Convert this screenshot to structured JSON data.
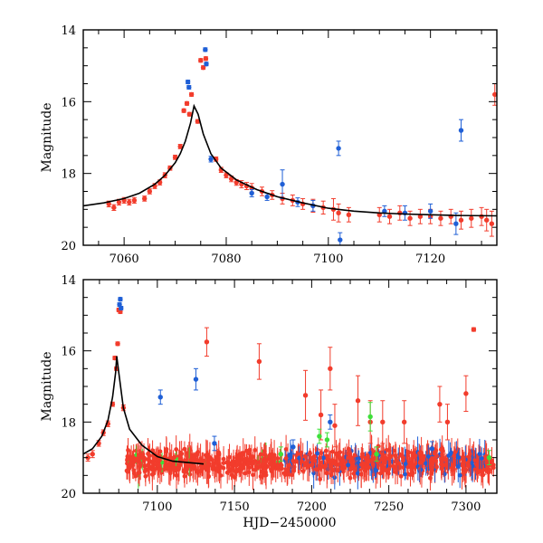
{
  "chart_data": [
    {
      "type": "scatter",
      "title": "",
      "xlabel": "",
      "ylabel": "Magnitude",
      "xlim": [
        7052,
        7133
      ],
      "ylim": [
        20,
        14
      ],
      "y_inverted": true,
      "xticks": [
        7060,
        7080,
        7100,
        7120
      ],
      "yticks": [
        14,
        16,
        18,
        20
      ],
      "colors": {
        "red": "#f23c2c",
        "blue": "#1f5fd6",
        "green": "#3ee03a",
        "model": "#000000"
      },
      "model_curve": {
        "name": "model",
        "x": [
          7052,
          7056,
          7060,
          7063,
          7066,
          7068,
          7070,
          7071,
          7072,
          7073,
          7073.7,
          7074.5,
          7075.5,
          7077,
          7079,
          7082,
          7086,
          7090,
          7095,
          7100,
          7105,
          7110,
          7115,
          7120,
          7125,
          7133
        ],
        "y": [
          18.9,
          18.82,
          18.7,
          18.55,
          18.3,
          18.05,
          17.7,
          17.45,
          17.1,
          16.6,
          16.12,
          16.35,
          16.9,
          17.45,
          17.85,
          18.18,
          18.45,
          18.65,
          18.82,
          18.97,
          19.05,
          19.1,
          19.13,
          19.15,
          19.17,
          19.18
        ]
      },
      "series": [
        {
          "name": "red",
          "x": [
            7057,
            7058,
            7059,
            7060,
            7061,
            7062,
            7064,
            7065,
            7066,
            7067,
            7068,
            7069,
            7070,
            7071,
            7071.7,
            7072.3,
            7072.8,
            7073.2,
            7074.4,
            7075,
            7075.5,
            7076,
            7078,
            7079,
            7080,
            7081,
            7082,
            7083,
            7084,
            7085,
            7087,
            7089,
            7091,
            7093,
            7095,
            7097,
            7099,
            7101,
            7102,
            7104,
            7110,
            7112,
            7114,
            7116,
            7118,
            7120,
            7122,
            7124,
            7126,
            7128,
            7130,
            7131,
            7132,
            7132.6
          ],
          "y": [
            18.85,
            18.95,
            18.8,
            18.75,
            18.8,
            18.75,
            18.7,
            18.5,
            18.35,
            18.25,
            18.05,
            17.85,
            17.55,
            17.25,
            16.25,
            16.05,
            16.35,
            15.8,
            16.55,
            14.85,
            15.05,
            14.8,
            17.6,
            17.9,
            18.05,
            18.15,
            18.25,
            18.3,
            18.35,
            18.4,
            18.5,
            18.6,
            18.7,
            18.75,
            18.85,
            18.9,
            18.95,
            19.0,
            19.1,
            19.15,
            19.15,
            19.2,
            19.1,
            19.25,
            19.2,
            19.2,
            19.25,
            19.2,
            19.3,
            19.25,
            19.2,
            19.3,
            19.4,
            15.8
          ],
          "err": [
            0.08,
            0.08,
            0.08,
            0.08,
            0.08,
            0.08,
            0.07,
            0.07,
            0.07,
            0.07,
            0.07,
            0.06,
            0.06,
            0.06,
            0.05,
            0.05,
            0.05,
            0.05,
            0.05,
            0.05,
            0.05,
            0.05,
            0.06,
            0.07,
            0.07,
            0.08,
            0.08,
            0.1,
            0.1,
            0.12,
            0.12,
            0.12,
            0.15,
            0.15,
            0.15,
            0.18,
            0.18,
            0.3,
            0.25,
            0.2,
            0.2,
            0.2,
            0.2,
            0.2,
            0.2,
            0.2,
            0.2,
            0.2,
            0.25,
            0.25,
            0.25,
            0.3,
            0.35,
            0.3
          ]
        },
        {
          "name": "blue",
          "x": [
            7072.5,
            7072.7,
            7075.9,
            7076.1,
            7077,
            7085,
            7088,
            7091,
            7094,
            7097,
            7102,
            7102.3,
            7111,
            7115,
            7120,
            7125,
            7126
          ],
          "y": [
            15.45,
            15.6,
            14.55,
            14.95,
            17.6,
            18.55,
            18.65,
            18.3,
            18.8,
            18.9,
            17.3,
            19.85,
            19.05,
            19.1,
            19.05,
            19.4,
            16.8
          ],
          "err": [
            0.05,
            0.05,
            0.05,
            0.05,
            0.08,
            0.1,
            0.1,
            0.4,
            0.12,
            0.15,
            0.2,
            0.2,
            0.15,
            0.2,
            0.2,
            0.3,
            0.3
          ]
        }
      ]
    },
    {
      "type": "scatter",
      "title": "",
      "xlabel": "HJD−2450000",
      "ylabel": "Magnitude",
      "xlim": [
        7052,
        7320
      ],
      "ylim": [
        20,
        14
      ],
      "y_inverted": true,
      "xticks": [
        7100,
        7150,
        7200,
        7250,
        7300
      ],
      "yticks": [
        14,
        16,
        18,
        20
      ],
      "colors": {
        "red": "#f23c2c",
        "blue": "#1f5fd6",
        "green": "#3ee03a",
        "model": "#000000"
      },
      "model_curve": {
        "name": "model",
        "x": [
          7052,
          7058,
          7064,
          7068,
          7071,
          7073,
          7073.7,
          7075,
          7078,
          7082,
          7090,
          7100,
          7110,
          7130
        ],
        "y": [
          18.9,
          18.75,
          18.4,
          17.95,
          17.3,
          16.6,
          16.15,
          16.6,
          17.6,
          18.2,
          18.65,
          18.97,
          19.1,
          19.18
        ]
      },
      "scatter_band": {
        "x_range": [
          7080,
          7318
        ],
        "y_center": 19.15,
        "y_spread": 0.35
      },
      "series": [
        {
          "name": "red",
          "x": [
            7055,
            7058,
            7062,
            7065,
            7068,
            7071,
            7072.5,
            7073.5,
            7074.3,
            7075,
            7076,
            7078,
            7132,
            7166,
            7196,
            7206,
            7212,
            7215,
            7230,
            7238,
            7246,
            7260,
            7283,
            7288,
            7300,
            7305
          ],
          "y": [
            19.0,
            18.9,
            18.6,
            18.3,
            18.05,
            17.5,
            16.2,
            16.5,
            15.8,
            14.85,
            14.9,
            17.6,
            15.75,
            16.3,
            17.25,
            17.8,
            16.5,
            18.1,
            17.4,
            18.0,
            18.0,
            18.0,
            17.5,
            18.0,
            17.2,
            15.4
          ],
          "err": [
            0.1,
            0.1,
            0.08,
            0.08,
            0.08,
            0.06,
            0.05,
            0.05,
            0.05,
            0.05,
            0.05,
            0.08,
            0.4,
            0.5,
            0.7,
            0.7,
            0.6,
            0.6,
            0.7,
            0.6,
            0.6,
            0.6,
            0.5,
            0.5,
            0.5,
            0.05
          ]
        },
        {
          "name": "blue",
          "x": [
            7075.5,
            7076,
            7076.5,
            7102,
            7125,
            7137,
            7188,
            7212,
            7278
          ],
          "y": [
            14.7,
            14.55,
            14.8,
            17.3,
            16.8,
            18.6,
            18.7,
            18.0,
            18.75
          ],
          "err": [
            0.05,
            0.05,
            0.05,
            0.2,
            0.3,
            0.2,
            0.2,
            0.2,
            0.2
          ]
        },
        {
          "name": "green",
          "x": [
            7180,
            7205,
            7210,
            7238,
            7242,
            7315
          ],
          "y": [
            18.9,
            18.4,
            18.5,
            17.85,
            18.9,
            19.0
          ],
          "err": [
            0.2,
            0.2,
            0.2,
            0.4,
            0.2,
            0.2
          ]
        }
      ]
    }
  ]
}
